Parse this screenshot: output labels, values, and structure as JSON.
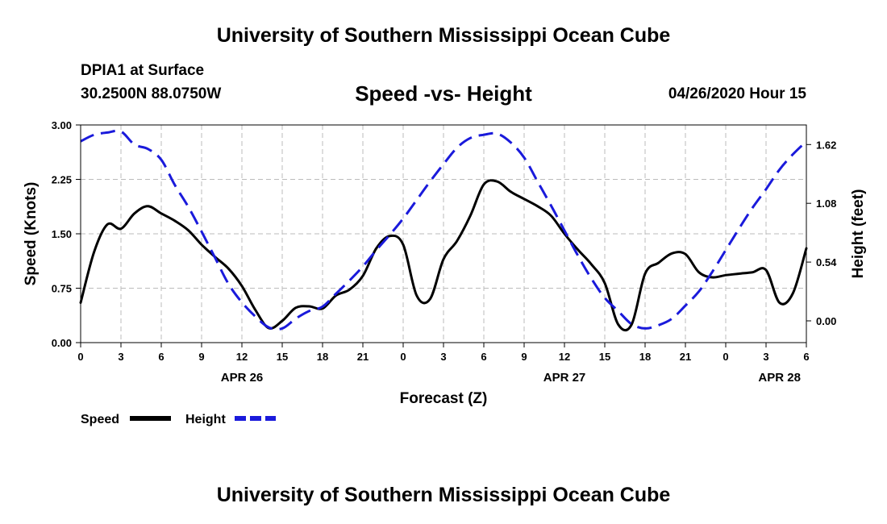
{
  "header": {
    "title": "University of Southern Mississippi Ocean Cube",
    "station": "DPIA1 at Surface",
    "coords": "30.2500N 88.0750W",
    "chart_title": "Speed -vs- Height",
    "datetime": "04/26/2020 Hour 15"
  },
  "footer": {
    "title": "University of Southern Mississippi Ocean Cube"
  },
  "colors": {
    "speed": "#000000",
    "height": "#1a1adb",
    "grid": "#bbbbbb"
  },
  "chart_data": {
    "type": "line",
    "title": "Speed -vs- Height",
    "xlabel": "Forecast (Z)",
    "ylabel": "Speed (Knots)",
    "y2label": "Height (feet)",
    "xlim": [
      0,
      54
    ],
    "ylim": [
      0,
      3
    ],
    "y2lim": [
      -0.2,
      1.8
    ],
    "x_ticks": [
      0,
      3,
      6,
      9,
      12,
      15,
      18,
      21,
      24,
      27,
      30,
      33,
      36,
      39,
      42,
      45,
      48,
      51,
      54
    ],
    "x_tick_labels": [
      "0",
      "3",
      "6",
      "9",
      "12",
      "15",
      "18",
      "21",
      "0",
      "3",
      "6",
      "9",
      "12",
      "15",
      "18",
      "21",
      "0",
      "3",
      "6"
    ],
    "y_ticks": [
      0,
      0.75,
      1.5,
      2.25,
      3
    ],
    "y_tick_labels": [
      "0.00",
      "0.75",
      "1.50",
      "2.25",
      "3.00"
    ],
    "y2_ticks": [
      0,
      0.54,
      1.08,
      1.62
    ],
    "y2_tick_labels": [
      "0.00",
      "0.54",
      "1.08",
      "1.62"
    ],
    "date_labels": [
      {
        "x": 12,
        "label": "APR 26"
      },
      {
        "x": 36,
        "label": "APR 27"
      },
      {
        "x": 52,
        "label": "APR 28"
      }
    ],
    "legend": [
      {
        "name": "Speed",
        "style": "solid"
      },
      {
        "name": "Height",
        "style": "dashed"
      }
    ],
    "series": [
      {
        "name": "Speed",
        "axis": "left",
        "x": [
          0,
          1,
          2,
          3,
          4,
          5,
          6,
          7,
          8,
          9,
          10,
          11,
          12,
          13,
          14,
          15,
          16,
          17,
          18,
          19,
          20,
          21,
          22,
          23,
          24,
          25,
          26,
          27,
          28,
          29,
          30,
          31,
          32,
          33,
          34,
          35,
          36,
          37,
          38,
          39,
          40,
          41,
          42,
          43,
          44,
          45,
          46,
          47,
          48,
          49,
          50,
          51,
          52,
          53,
          54
        ],
        "values": [
          0.55,
          1.25,
          1.63,
          1.57,
          1.78,
          1.88,
          1.78,
          1.68,
          1.55,
          1.35,
          1.18,
          1.02,
          0.78,
          0.45,
          0.2,
          0.3,
          0.48,
          0.5,
          0.47,
          0.65,
          0.73,
          0.92,
          1.3,
          1.47,
          1.35,
          0.65,
          0.6,
          1.15,
          1.4,
          1.75,
          2.18,
          2.22,
          2.08,
          1.98,
          1.88,
          1.75,
          1.5,
          1.28,
          1.08,
          0.82,
          0.25,
          0.25,
          0.95,
          1.1,
          1.23,
          1.22,
          0.97,
          0.9,
          0.93,
          0.95,
          0.97,
          1.0,
          0.55,
          0.68,
          1.3
        ]
      },
      {
        "name": "Height",
        "axis": "right",
        "x": [
          0,
          1,
          2,
          3,
          4,
          5,
          6,
          7,
          8,
          9,
          10,
          11,
          12,
          13,
          14,
          15,
          16,
          17,
          18,
          19,
          20,
          21,
          22,
          23,
          24,
          25,
          26,
          27,
          28,
          29,
          30,
          31,
          32,
          33,
          34,
          35,
          36,
          37,
          38,
          39,
          40,
          41,
          42,
          43,
          44,
          45,
          46,
          47,
          48,
          49,
          50,
          51,
          52,
          53,
          54
        ],
        "values": [
          1.65,
          1.71,
          1.73,
          1.74,
          1.62,
          1.58,
          1.48,
          1.25,
          1.05,
          0.82,
          0.58,
          0.34,
          0.17,
          0.04,
          -0.06,
          -0.07,
          0.02,
          0.09,
          0.13,
          0.25,
          0.37,
          0.5,
          0.65,
          0.79,
          0.94,
          1.11,
          1.28,
          1.44,
          1.59,
          1.68,
          1.71,
          1.72,
          1.64,
          1.5,
          1.28,
          1.06,
          0.83,
          0.6,
          0.39,
          0.21,
          0.09,
          -0.03,
          -0.07,
          -0.04,
          0.02,
          0.14,
          0.27,
          0.45,
          0.65,
          0.85,
          1.04,
          1.21,
          1.39,
          1.53,
          1.65
        ]
      }
    ]
  }
}
